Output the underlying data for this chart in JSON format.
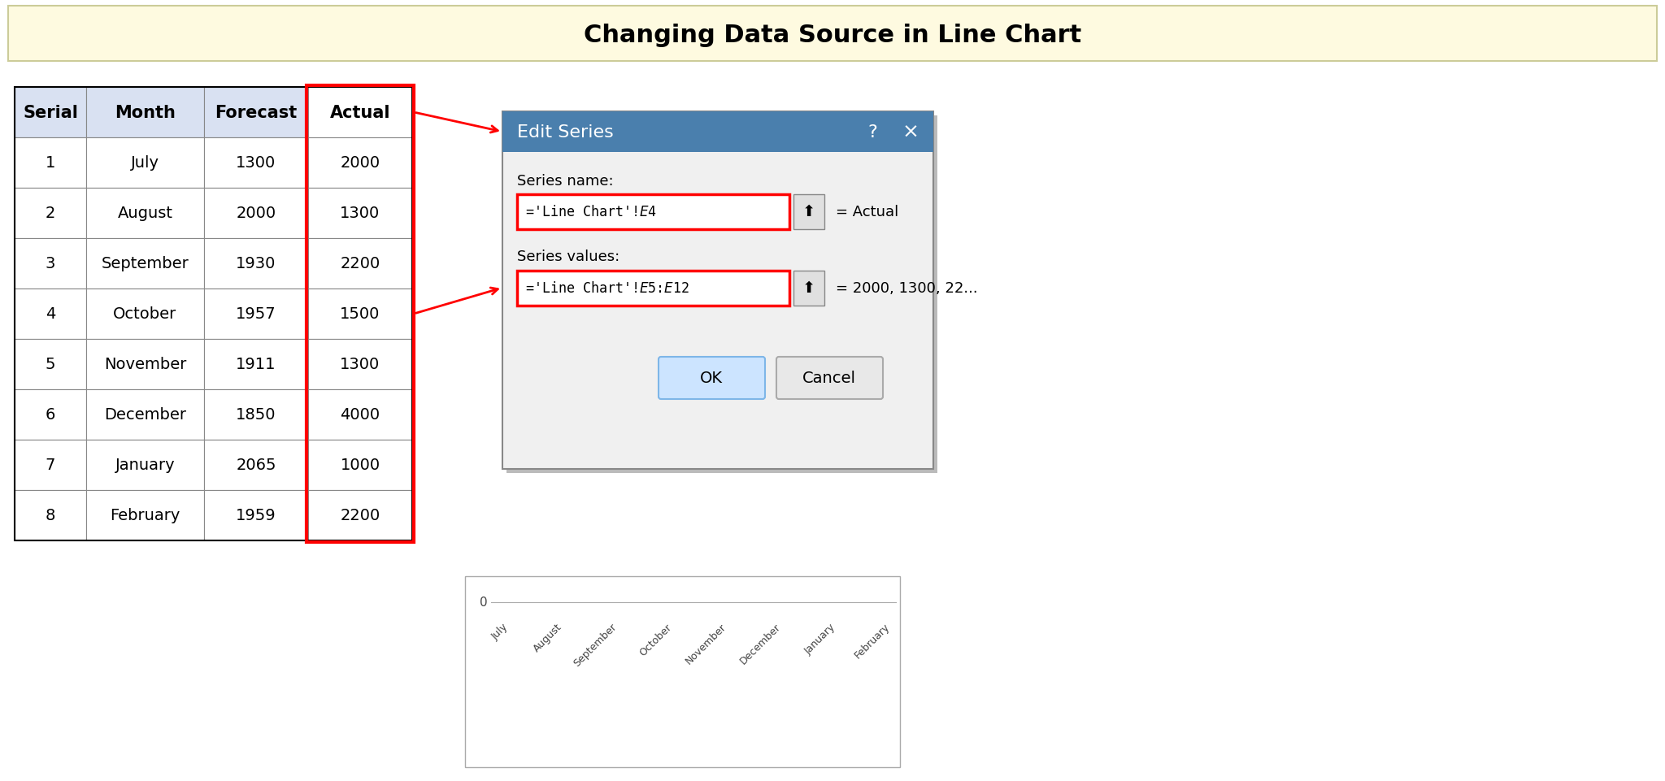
{
  "title": "Changing Data Source in Line Chart",
  "title_bg": "#FEFAE0",
  "title_fontsize": 22,
  "table_headers": [
    "Serial",
    "Month",
    "Forecast",
    "Actual"
  ],
  "table_data": [
    [
      1,
      "July",
      1300,
      2000
    ],
    [
      2,
      "August",
      2000,
      1300
    ],
    [
      3,
      "September",
      1930,
      2200
    ],
    [
      4,
      "October",
      1957,
      1500
    ],
    [
      5,
      "November",
      1911,
      1300
    ],
    [
      6,
      "December",
      1850,
      4000
    ],
    [
      7,
      "January",
      2065,
      1000
    ],
    [
      8,
      "February",
      1959,
      2200
    ]
  ],
  "header_bg": "#D9E1F2",
  "actual_header_bg": "#FFFFFF",
  "row_bg": "#FFFFFF",
  "red_border": "#FF0000",
  "dialog_title": "Edit Series",
  "dialog_title_bg": "#4A7FAD",
  "dialog_bg": "#F0F0F0",
  "series_name_label": "Series name:",
  "series_name_value": "='Line Chart'!$E$4",
  "series_name_result": "= Actual",
  "series_values_label": "Series values:",
  "series_values_value": "='Line Chart'!$E$5:$E$12",
  "series_values_result": "= 2000, 1300, 22...",
  "ok_btn": "OK",
  "cancel_btn": "Cancel",
  "ok_bg": "#CCE4FF",
  "cancel_bg": "#E8E8E8",
  "chart_x_labels": [
    "July",
    "August",
    "September",
    "October",
    "November",
    "December",
    "January",
    "February"
  ],
  "chart_zero_label": "0"
}
